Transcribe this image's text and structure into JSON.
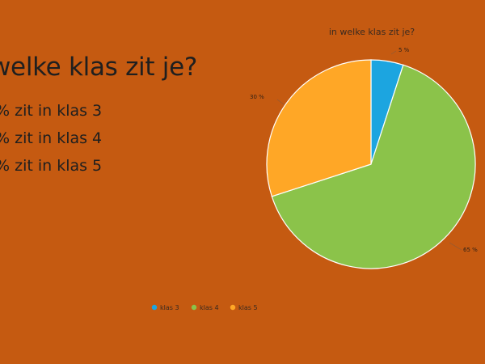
{
  "slide": {
    "title": "welke klas zit je?",
    "bullets": [
      "% zit in klas 3",
      "% zit in klas 4",
      "% zit in klas 5"
    ]
  },
  "chart_data": {
    "type": "pie",
    "title": "in welke klas zit je?",
    "categories": [
      "klas 3",
      "klas 4",
      "klas 5"
    ],
    "values": [
      5,
      65,
      30
    ],
    "labels": [
      "5 %",
      "65 %",
      "30 %"
    ],
    "colors": [
      "#1CA5E0",
      "#8BC34A",
      "#FFA726"
    ],
    "legend_position": "bottom"
  }
}
